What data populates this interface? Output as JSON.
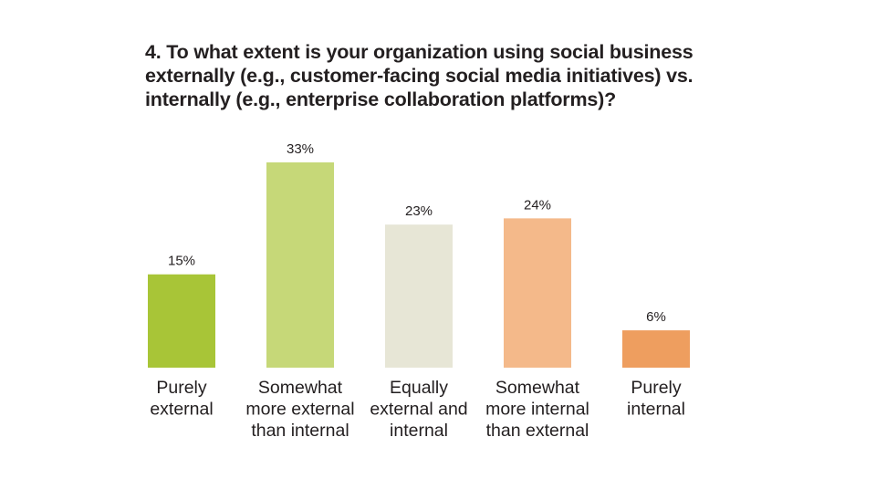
{
  "title_lines": [
    "4. To what extent is your organization using social business",
    "externally (e.g., customer-facing social media initiatives) vs.",
    "internally (e.g., enterprise collaboration platforms)?"
  ],
  "chart_data": {
    "type": "bar",
    "categories": [
      [
        "Purely",
        "external"
      ],
      [
        "Somewhat",
        "more external",
        "than internal"
      ],
      [
        "Equally",
        "external and",
        "internal"
      ],
      [
        "Somewhat",
        "more internal",
        "than external"
      ],
      [
        "Purely",
        "internal"
      ]
    ],
    "values": [
      15,
      33,
      23,
      24,
      6
    ],
    "value_labels": [
      "15%",
      "33%",
      "23%",
      "24%",
      "6%"
    ],
    "colors": [
      "#a8c537",
      "#c6d878",
      "#e7e6d6",
      "#f4b98a",
      "#ee9e5f"
    ],
    "title": "4. To what extent is your organization using social business externally (e.g., customer-facing social media initiatives) vs. internally (e.g., enterprise collaboration platforms)?",
    "xlabel": "",
    "ylabel": "",
    "ylim": [
      0,
      33
    ],
    "grid": false,
    "legend": "none"
  }
}
